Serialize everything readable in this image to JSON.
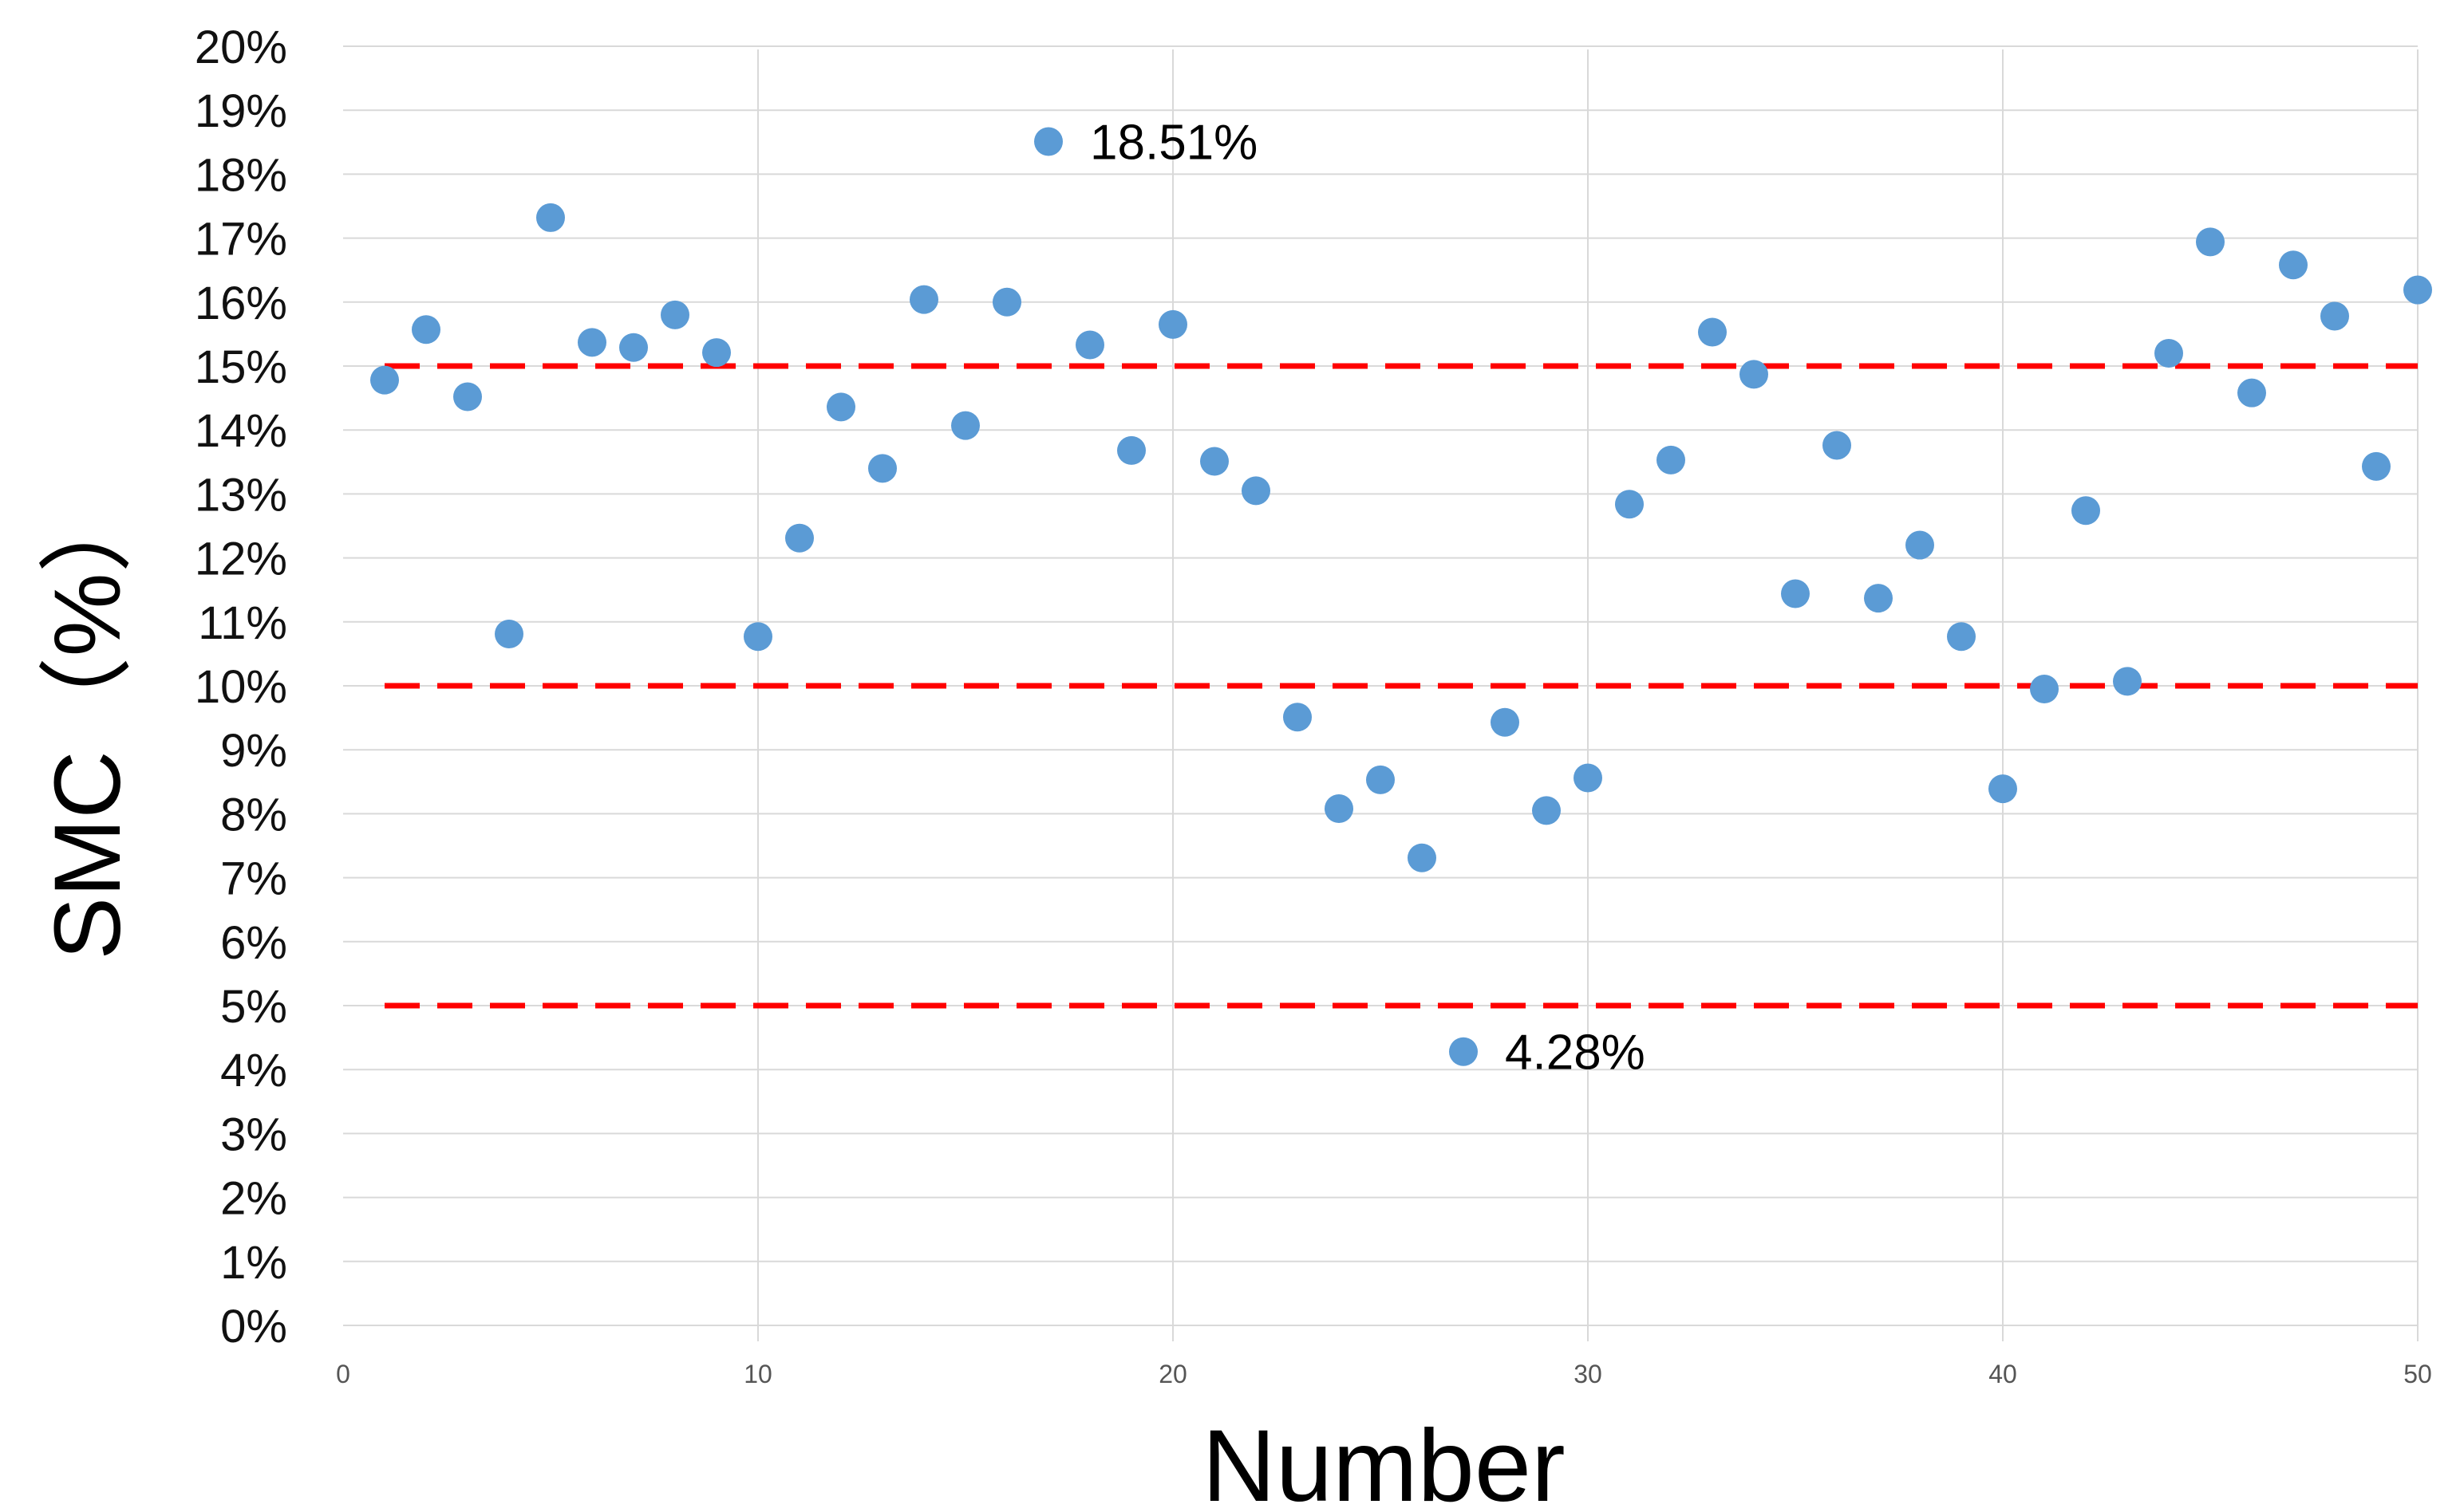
{
  "chart_data": {
    "type": "scatter",
    "title": "",
    "xlabel": "Number",
    "ylabel": "SMC（%）",
    "xlim": [
      0,
      50
    ],
    "ylim": [
      0,
      20
    ],
    "x_ticks": [
      "0",
      "10",
      "20",
      "30",
      "40",
      "50"
    ],
    "y_ticks": [
      "0%",
      "1%",
      "2%",
      "3%",
      "4%",
      "5%",
      "6%",
      "7%",
      "8%",
      "9%",
      "10%",
      "11%",
      "12%",
      "13%",
      "14%",
      "15%",
      "16%",
      "17%",
      "18%",
      "19%",
      "20%"
    ],
    "grid": true,
    "legend": "none",
    "series": [
      {
        "color": "#5b9bd5",
        "points": [
          [
            1,
            14.78
          ],
          [
            2,
            15.57
          ],
          [
            3,
            14.52
          ],
          [
            4,
            10.81
          ],
          [
            5,
            17.32
          ],
          [
            6,
            15.37
          ],
          [
            7,
            15.29
          ],
          [
            8,
            15.8
          ],
          [
            9,
            15.21
          ],
          [
            10,
            10.77
          ],
          [
            11,
            12.31
          ],
          [
            12,
            14.36
          ],
          [
            13,
            13.4
          ],
          [
            14,
            16.04
          ],
          [
            15,
            14.07
          ],
          [
            16,
            16.0
          ],
          [
            17,
            18.51
          ],
          [
            18,
            15.33
          ],
          [
            19,
            13.68
          ],
          [
            20,
            15.65
          ],
          [
            21,
            13.51
          ],
          [
            22,
            13.05
          ],
          [
            23,
            9.51
          ],
          [
            24,
            8.08
          ],
          [
            25,
            8.53
          ],
          [
            26,
            7.31
          ],
          [
            27,
            4.28
          ],
          [
            28,
            9.43
          ],
          [
            29,
            8.05
          ],
          [
            30,
            8.56
          ],
          [
            31,
            12.84
          ],
          [
            32,
            13.53
          ],
          [
            33,
            15.53
          ],
          [
            34,
            14.87
          ],
          [
            35,
            11.44
          ],
          [
            36,
            13.76
          ],
          [
            37,
            11.37
          ],
          [
            38,
            12.2
          ],
          [
            39,
            10.77
          ],
          [
            40,
            8.39
          ],
          [
            41,
            9.95
          ],
          [
            42,
            12.74
          ],
          [
            43,
            10.07
          ],
          [
            44,
            15.2
          ],
          [
            45,
            16.94
          ],
          [
            46,
            14.58
          ],
          [
            47,
            16.58
          ],
          [
            48,
            15.78
          ],
          [
            49,
            13.43
          ],
          [
            50,
            16.19
          ]
        ]
      }
    ],
    "reference_lines": [
      {
        "y": 15,
        "color": "#ff0000",
        "style": "dashed"
      },
      {
        "y": 10,
        "color": "#ff0000",
        "style": "dashed"
      },
      {
        "y": 5,
        "color": "#ff0000",
        "style": "dashed"
      }
    ],
    "annotations": [
      {
        "x": 17,
        "y": 18.51,
        "text": "18.51%"
      },
      {
        "x": 27,
        "y": 4.28,
        "text": "4.28%"
      }
    ]
  }
}
